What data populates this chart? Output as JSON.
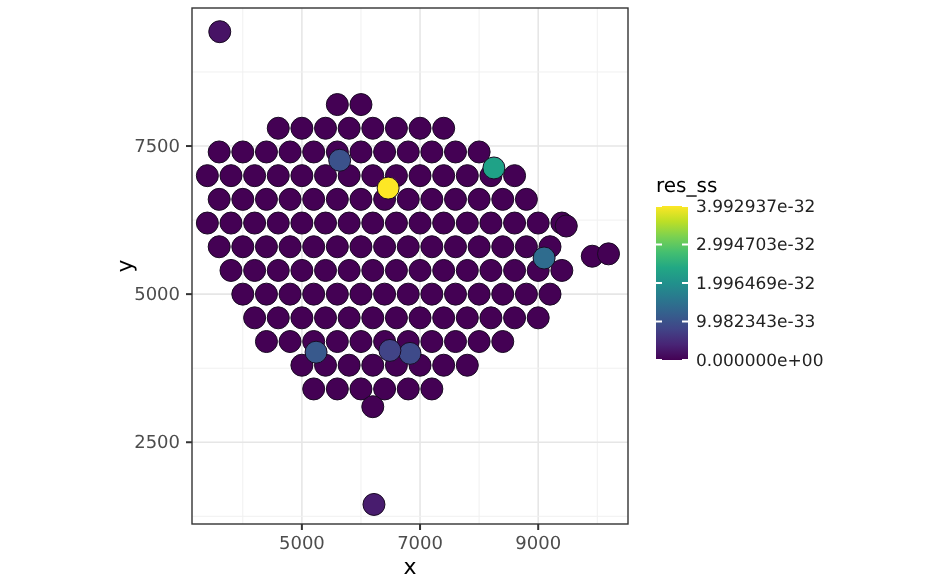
{
  "chart_data": {
    "type": "scatter",
    "xlabel": "x",
    "ylabel": "y",
    "clabel": "res_ss",
    "xlim": [
      3140,
      10520
    ],
    "ylim": [
      1120,
      9830
    ],
    "xticks": [
      5000,
      7000,
      9000
    ],
    "yticks": [
      2500,
      5000,
      7500
    ],
    "grid": true,
    "marker": "circle",
    "clim": [
      0,
      3.992937e-32
    ],
    "cticks": [
      {
        "value": 0,
        "label": "0.000000e+00"
      },
      {
        "value": 9.982343e-33,
        "label": "9.982343e-33"
      },
      {
        "value": 1.996469e-32,
        "label": "1.996469e-32"
      },
      {
        "value": 2.994703e-32,
        "label": "2.994703e-32"
      },
      {
        "value": 3.992937e-32,
        "label": "3.992937e-32"
      }
    ],
    "x": [
      5600,
      6000,
      4600,
      5000,
      5400,
      5800,
      6200,
      6600,
      7000,
      7400,
      3600,
      4000,
      4400,
      4800,
      5200,
      5600,
      6000,
      6400,
      6800,
      7200,
      7600,
      8000,
      3400,
      3800,
      4200,
      4600,
      5000,
      5400,
      5800,
      6200,
      6600,
      7000,
      7400,
      7800,
      8200,
      8600,
      3600,
      4000,
      4400,
      4800,
      5200,
      5600,
      6000,
      6400,
      6800,
      7200,
      7600,
      8000,
      8400,
      8800,
      3400,
      3800,
      4200,
      4600,
      5000,
      5400,
      5800,
      6200,
      6600,
      7000,
      7400,
      7800,
      8200,
      8600,
      9000,
      9400,
      3600,
      4000,
      4400,
      4800,
      5200,
      5600,
      6000,
      6400,
      6800,
      7200,
      7600,
      8000,
      8400,
      8800,
      9200,
      3800,
      4200,
      4600,
      5000,
      5400,
      5800,
      6200,
      6600,
      7000,
      7400,
      7800,
      8200,
      8600,
      9000,
      9400,
      4000,
      4400,
      4800,
      5200,
      5600,
      6000,
      6400,
      6800,
      7200,
      7600,
      8000,
      8400,
      8800,
      9200,
      4200,
      4600,
      5000,
      5400,
      5800,
      6200,
      6600,
      7000,
      7400,
      7800,
      8200,
      8600,
      9000,
      4400,
      4800,
      5200,
      5600,
      6000,
      6400,
      6800,
      7200,
      7600,
      8000,
      8400,
      5000,
      5400,
      5800,
      6200,
      6600,
      7000,
      7400,
      7800,
      5200,
      5600,
      6000,
      6400,
      6800,
      7200,
      6200,
      6460,
      8250,
      5640,
      9100,
      5240,
      6830,
      6490,
      3610,
      6220,
      9915,
      10190,
      9475
    ],
    "values": [
      8200,
      8200,
      7800,
      7800,
      7800,
      7800,
      7800,
      7800,
      7800,
      7800,
      7400,
      7400,
      7400,
      7400,
      7400,
      7400,
      7400,
      7400,
      7400,
      7400,
      7400,
      7400,
      7000,
      7000,
      7000,
      7000,
      7000,
      7000,
      7000,
      7000,
      7000,
      7000,
      7000,
      7000,
      7000,
      7000,
      6600,
      6600,
      6600,
      6600,
      6600,
      6600,
      6600,
      6600,
      6600,
      6600,
      6600,
      6600,
      6600,
      6600,
      6200,
      6200,
      6200,
      6200,
      6200,
      6200,
      6200,
      6200,
      6200,
      6200,
      6200,
      6200,
      6200,
      6200,
      6200,
      6200,
      5800,
      5800,
      5800,
      5800,
      5800,
      5800,
      5800,
      5800,
      5800,
      5800,
      5800,
      5800,
      5800,
      5800,
      5800,
      5400,
      5400,
      5400,
      5400,
      5400,
      5400,
      5400,
      5400,
      5400,
      5400,
      5400,
      5400,
      5400,
      5400,
      5400,
      5000,
      5000,
      5000,
      5000,
      5000,
      5000,
      5000,
      5000,
      5000,
      5000,
      5000,
      5000,
      5000,
      5000,
      4600,
      4600,
      4600,
      4600,
      4600,
      4600,
      4600,
      4600,
      4600,
      4600,
      4600,
      4600,
      4600,
      4200,
      4200,
      4200,
      4200,
      4200,
      4200,
      4200,
      4200,
      4200,
      4200,
      4200,
      3800,
      3800,
      3800,
      3800,
      3800,
      3800,
      3800,
      3800,
      3400,
      3400,
      3400,
      3400,
      3400,
      3400,
      3100,
      6790,
      7130,
      7260,
      5610,
      4020,
      4000,
      4050,
      9430,
      1450,
      5640,
      5680,
      6150
    ],
    "cvalues": [
      0,
      0,
      0,
      0,
      0,
      0,
      0,
      0,
      0,
      0,
      0,
      0,
      0,
      0,
      0,
      0,
      0,
      0,
      0,
      0,
      0,
      0,
      0,
      0,
      0,
      0,
      0,
      0,
      0,
      0,
      0,
      0,
      0,
      0,
      0,
      0,
      0,
      0,
      0,
      0,
      0,
      0,
      0,
      0,
      0,
      0,
      0,
      0,
      0,
      0,
      0,
      0,
      0,
      0,
      0,
      0,
      0,
      0,
      0,
      0,
      0,
      0,
      0,
      0,
      0,
      0,
      0,
      0,
      0,
      0,
      0,
      0,
      0,
      0,
      0,
      0,
      0,
      0,
      0,
      0,
      0,
      0,
      0,
      0,
      0,
      0,
      0,
      0,
      0,
      0,
      0,
      0,
      0,
      0,
      0,
      0,
      0,
      0,
      0,
      0,
      0,
      0,
      0,
      0,
      0,
      0,
      0,
      0,
      0,
      0,
      0,
      0,
      0,
      0,
      0,
      0,
      0,
      0,
      0,
      0,
      0,
      0,
      0,
      0,
      0,
      0,
      0,
      0,
      0,
      0,
      0,
      0,
      0,
      0,
      0,
      0,
      0,
      0,
      0,
      0,
      0,
      0,
      0,
      0,
      0,
      0,
      0,
      0,
      0,
      3.99e-32,
      2.3e-32,
      1e-32,
      1.4e-32,
      1.1e-32,
      9e-33,
      8e-33,
      2e-33,
      3e-33,
      0,
      0,
      0
    ]
  }
}
